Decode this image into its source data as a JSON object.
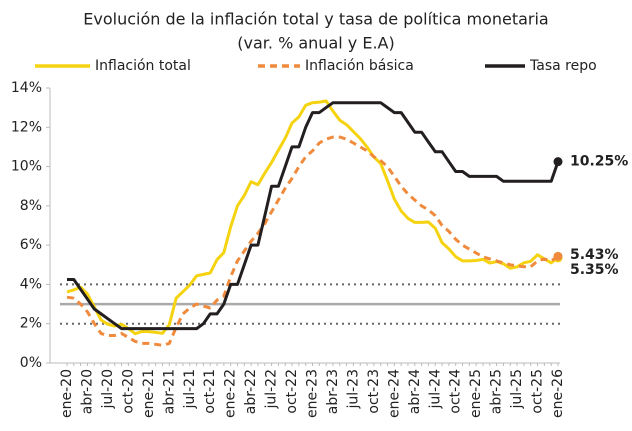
{
  "chart_data": {
    "type": "line",
    "title": "Evolución de la inflación total y tasa de política monetaria",
    "subtitle": "(var. % anual y E.A)",
    "categories": [
      "ene-20",
      null,
      null,
      "abr-20",
      null,
      null,
      "jul-20",
      null,
      null,
      "oct-20",
      null,
      null,
      "ene-21",
      null,
      null,
      "abr-21",
      null,
      null,
      "jul-21",
      null,
      null,
      "oct-21",
      null,
      null,
      "ene-22",
      null,
      null,
      "abr-22",
      null,
      null,
      "jul-22",
      null,
      null,
      "oct-22",
      null,
      null,
      "ene-23",
      null,
      null,
      "abr-23",
      null,
      null,
      "jul-23",
      null,
      null,
      "oct-23",
      null,
      null,
      "ene-24",
      null,
      null,
      "abr-24",
      null,
      null,
      "jul-24",
      null,
      null,
      "oct-24",
      null,
      null,
      "ene-25",
      null,
      null,
      "abr-25",
      null,
      null,
      "jul-25",
      null,
      null,
      "oct-25",
      null,
      null,
      "ene-26"
    ],
    "series": [
      {
        "name": "Inflación total",
        "color": "#f5d311",
        "style": "solid",
        "end_label": "5.35%",
        "end_label_color": "#d9b800",
        "values": [
          3.62,
          3.72,
          3.86,
          3.51,
          2.85,
          2.19,
          1.97,
          1.88,
          1.97,
          1.75,
          1.49,
          1.61,
          1.6,
          1.56,
          1.51,
          1.95,
          3.3,
          3.63,
          3.97,
          4.44,
          4.51,
          4.58,
          5.26,
          5.62,
          6.94,
          8.01,
          8.53,
          9.23,
          9.07,
          9.67,
          10.21,
          10.84,
          11.44,
          12.22,
          12.53,
          13.12,
          13.25,
          13.28,
          13.34,
          12.82,
          12.36,
          12.13,
          11.78,
          11.43,
          10.99,
          10.48,
          10.15,
          9.28,
          8.35,
          7.74,
          7.36,
          7.16,
          7.16,
          7.18,
          6.86,
          6.12,
          5.81,
          5.41,
          5.2,
          5.2,
          5.22,
          5.28,
          5.09,
          5.16,
          5.05,
          4.82,
          4.9,
          5.1,
          5.18,
          5.51,
          5.3,
          5.1,
          5.35
        ]
      },
      {
        "name": "Inflación básica",
        "color": "#f08a3c",
        "style": "dashed",
        "end_label": "5.43%",
        "end_label_color": "#f08a3c",
        "values": [
          3.35,
          3.3,
          3.0,
          2.6,
          2.0,
          1.5,
          1.4,
          1.4,
          1.5,
          1.3,
          1.1,
          1.0,
          1.0,
          0.95,
          0.9,
          1.0,
          1.8,
          2.5,
          2.8,
          3.0,
          2.9,
          2.8,
          3.2,
          3.4,
          4.4,
          5.2,
          5.7,
          6.2,
          6.6,
          7.1,
          7.7,
          8.3,
          8.9,
          9.4,
          10.0,
          10.5,
          10.8,
          11.2,
          11.4,
          11.5,
          11.5,
          11.4,
          11.2,
          11.0,
          10.8,
          10.5,
          10.3,
          10.0,
          9.5,
          9.0,
          8.6,
          8.3,
          8.0,
          7.8,
          7.5,
          7.0,
          6.7,
          6.3,
          6.0,
          5.8,
          5.6,
          5.4,
          5.3,
          5.2,
          5.1,
          5.0,
          4.95,
          4.9,
          4.9,
          5.2,
          5.3,
          5.2,
          5.43
        ]
      },
      {
        "name": "Tasa repo",
        "color": "#231f20",
        "style": "solid",
        "end_label": "10.25%",
        "end_label_color": "#231f20",
        "values": [
          4.25,
          4.25,
          3.75,
          3.25,
          2.75,
          2.5,
          2.25,
          2.0,
          1.75,
          1.75,
          1.75,
          1.75,
          1.75,
          1.75,
          1.75,
          1.75,
          1.75,
          1.75,
          1.75,
          1.75,
          2.0,
          2.5,
          2.5,
          3.0,
          4.0,
          4.0,
          5.0,
          6.0,
          6.0,
          7.5,
          9.0,
          9.0,
          10.0,
          11.0,
          11.0,
          12.0,
          12.75,
          12.75,
          13.0,
          13.25,
          13.25,
          13.25,
          13.25,
          13.25,
          13.25,
          13.25,
          13.25,
          13.0,
          12.75,
          12.75,
          12.25,
          11.75,
          11.75,
          11.25,
          10.75,
          10.75,
          10.25,
          9.75,
          9.75,
          9.5,
          9.5,
          9.5,
          9.5,
          9.5,
          9.25,
          9.25,
          9.25,
          9.25,
          9.25,
          9.25,
          9.25,
          9.25,
          10.25
        ]
      }
    ],
    "ylim": [
      0,
      14
    ],
    "yticks": [
      {
        "value": 0,
        "label": "0%"
      },
      {
        "value": 2,
        "label": "2%"
      },
      {
        "value": 4,
        "label": "4%"
      },
      {
        "value": 6,
        "label": "6%"
      },
      {
        "value": 8,
        "label": "8%"
      },
      {
        "value": 10,
        "label": "10%"
      },
      {
        "value": 12,
        "label": "12%"
      },
      {
        "value": 14,
        "label": "14%"
      }
    ],
    "reference_lines": [
      {
        "value": 2,
        "style": "dotted"
      },
      {
        "value": 3,
        "style": "solid"
      },
      {
        "value": 4,
        "style": "dotted"
      }
    ],
    "legend": "top"
  }
}
